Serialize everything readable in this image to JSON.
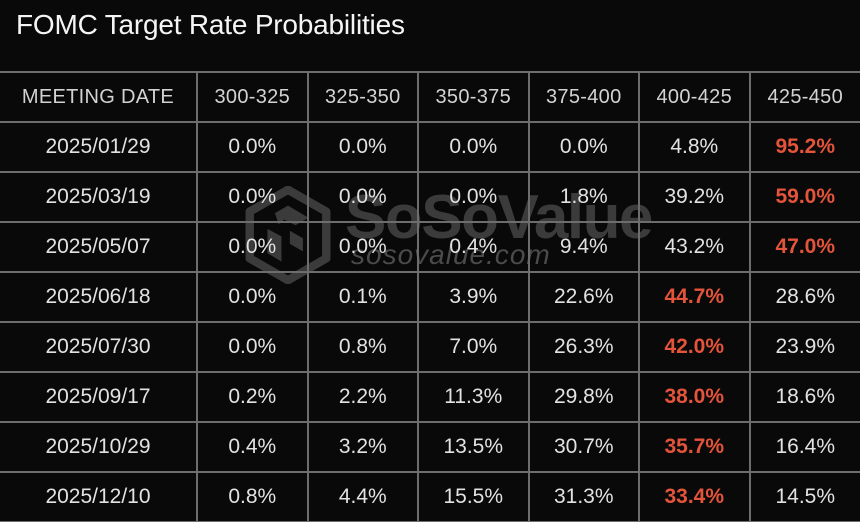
{
  "title": "FOMC Target Rate Probabilities",
  "watermark": {
    "brand": "SoSoValue",
    "domain": "sosovalue.com",
    "logo_icon": "sosovalue-cube-logo-icon"
  },
  "colors": {
    "background": "#090909",
    "title_text": "#f5f5f5",
    "header_text": "#d3d3d3",
    "cell_text": "#e2e2e2",
    "highlight_text": "#e4543b",
    "grid_border": "#6d6d6d",
    "watermark_brand": "#3b3b3b",
    "watermark_domain": "#4b4b4b"
  },
  "chart_data": {
    "type": "table",
    "title": "FOMC Target Rate Probabilities",
    "columns": [
      "MEETING DATE",
      "300-325",
      "325-350",
      "350-375",
      "375-400",
      "400-425",
      "425-450"
    ],
    "rows": [
      {
        "meeting_date": "2025/01/29",
        "values": [
          "0.0%",
          "0.0%",
          "0.0%",
          "0.0%",
          "4.8%",
          "95.2%"
        ],
        "highlight_col": 5
      },
      {
        "meeting_date": "2025/03/19",
        "values": [
          "0.0%",
          "0.0%",
          "0.0%",
          "1.8%",
          "39.2%",
          "59.0%"
        ],
        "highlight_col": 5
      },
      {
        "meeting_date": "2025/05/07",
        "values": [
          "0.0%",
          "0.0%",
          "0.4%",
          "9.4%",
          "43.2%",
          "47.0%"
        ],
        "highlight_col": 5
      },
      {
        "meeting_date": "2025/06/18",
        "values": [
          "0.0%",
          "0.1%",
          "3.9%",
          "22.6%",
          "44.7%",
          "28.6%"
        ],
        "highlight_col": 4
      },
      {
        "meeting_date": "2025/07/30",
        "values": [
          "0.0%",
          "0.8%",
          "7.0%",
          "26.3%",
          "42.0%",
          "23.9%"
        ],
        "highlight_col": 4
      },
      {
        "meeting_date": "2025/09/17",
        "values": [
          "0.2%",
          "2.2%",
          "11.3%",
          "29.8%",
          "38.0%",
          "18.6%"
        ],
        "highlight_col": 4
      },
      {
        "meeting_date": "2025/10/29",
        "values": [
          "0.4%",
          "3.2%",
          "13.5%",
          "30.7%",
          "35.7%",
          "16.4%"
        ],
        "highlight_col": 4
      },
      {
        "meeting_date": "2025/12/10",
        "values": [
          "0.8%",
          "4.4%",
          "15.5%",
          "31.3%",
          "33.4%",
          "14.5%"
        ],
        "highlight_col": 4
      }
    ],
    "highlight_meaning": "orange bold cell = highest probability target-rate range for that meeting",
    "legend_position": "none",
    "grid": true
  }
}
